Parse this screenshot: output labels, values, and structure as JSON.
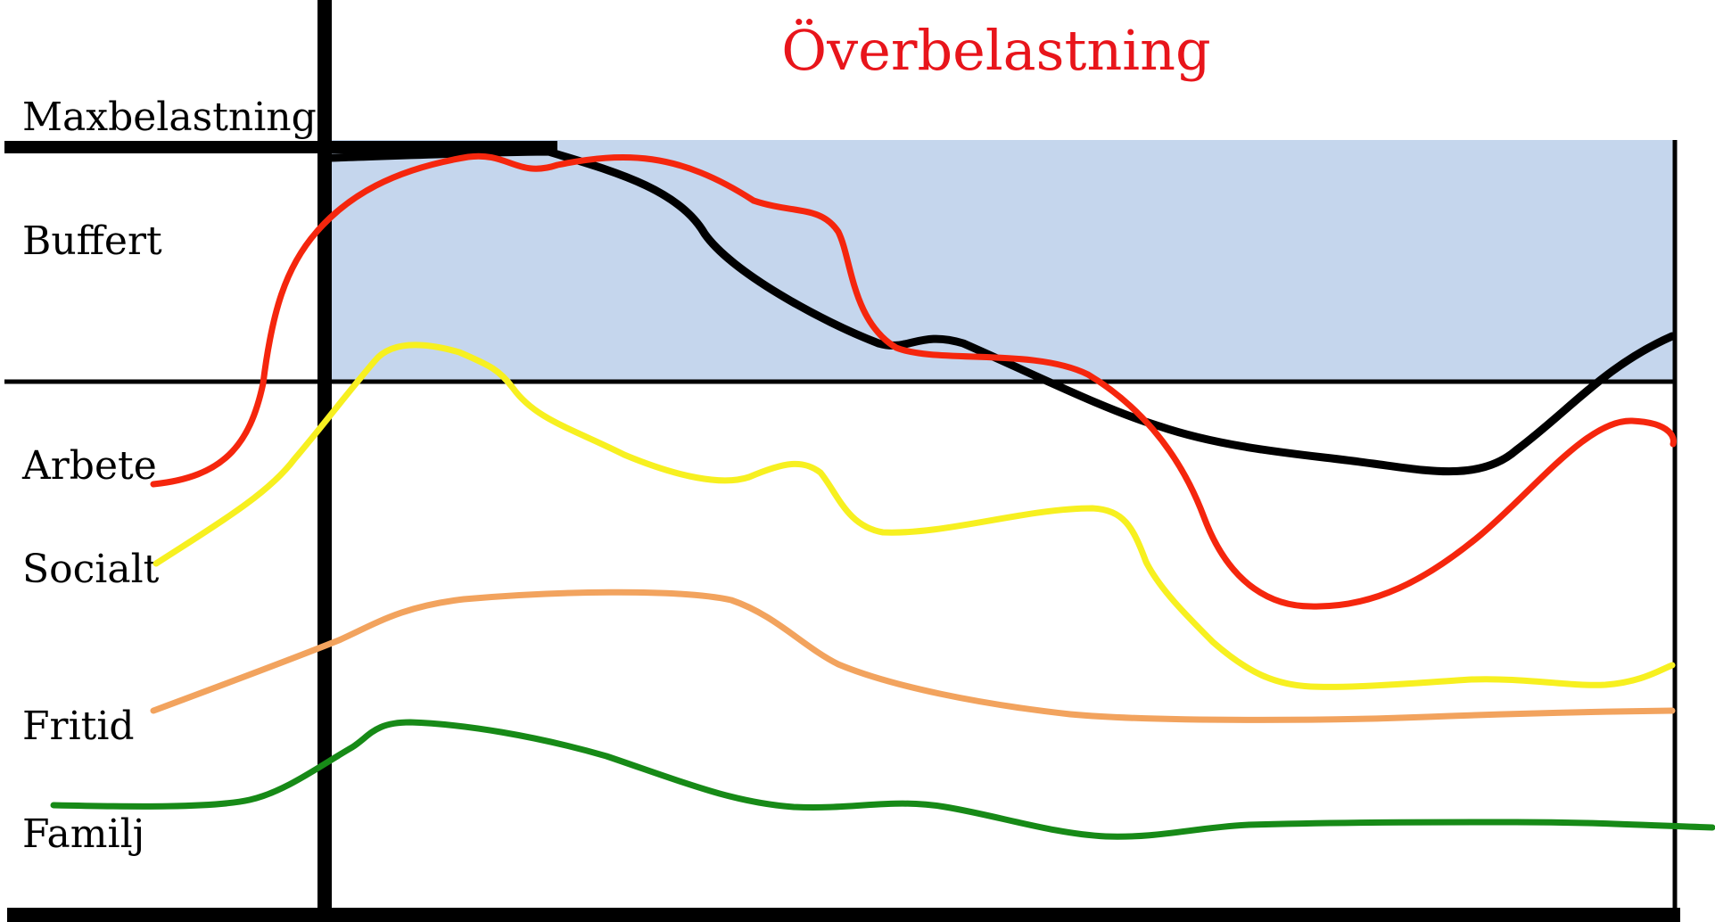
{
  "title": "Överbelastning",
  "colors": {
    "title": "#e8151b",
    "buffer_zone": "#c5d6ed",
    "axes": "#000000",
    "total_load": "#000000",
    "arbete": "#f5260d",
    "socialt": "#f7f020",
    "fritid": "#f2a35e",
    "familj": "#178a17"
  },
  "levels": {
    "max": "Maxbelastning",
    "buffer": "Buffert"
  },
  "series": [
    {
      "key": "arbete",
      "label": "Arbete"
    },
    {
      "key": "socialt",
      "label": "Socialt"
    },
    {
      "key": "fritid",
      "label": "Fritid"
    },
    {
      "key": "familj",
      "label": "Familj"
    }
  ]
}
